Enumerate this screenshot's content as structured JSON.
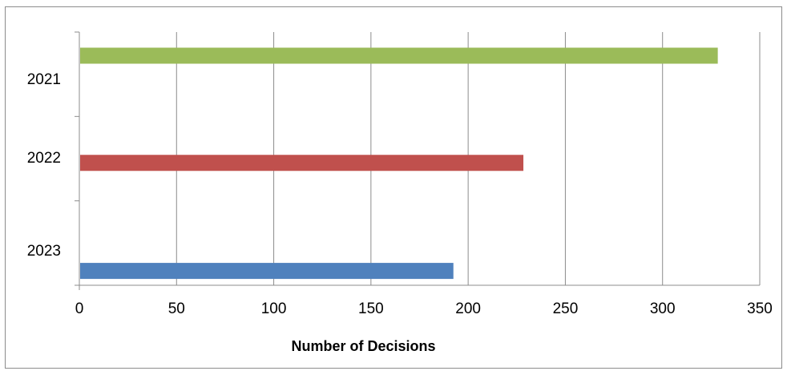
{
  "chart_data": {
    "type": "bar",
    "orientation": "horizontal",
    "categories": [
      "2021",
      "2022",
      "2023"
    ],
    "values": [
      328,
      228,
      192
    ],
    "bar_colors": [
      "#9bbb59",
      "#c0504d",
      "#4f81bd"
    ],
    "xlabel": "Number of Decisions",
    "ylabel": "",
    "xlim": [
      0,
      350
    ],
    "x_ticks": [
      0,
      50,
      100,
      150,
      200,
      250,
      300,
      350
    ],
    "grid": "vertical",
    "legend": "none"
  }
}
